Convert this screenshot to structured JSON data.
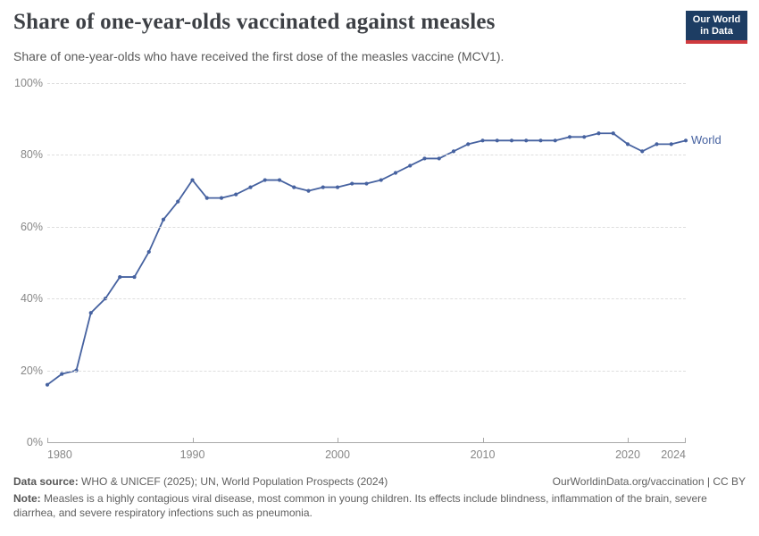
{
  "header": {
    "title": "Share of one-year-olds vaccinated against measles",
    "subtitle": "Share of one-year-olds who have received the first dose of the measles vaccine (MCV1).",
    "logo_line1": "Our World",
    "logo_line2": "in Data"
  },
  "chart_data": {
    "type": "line",
    "title": "Share of one-year-olds vaccinated against measles",
    "xlabel": "",
    "ylabel": "",
    "xlim": [
      1980,
      2024
    ],
    "ylim": [
      0,
      100
    ],
    "x_ticks": [
      1980,
      1990,
      2000,
      2010,
      2020,
      2024
    ],
    "y_ticks": [
      0,
      20,
      40,
      60,
      80,
      100
    ],
    "y_tick_suffix": "%",
    "grid": "horizontal-dashed",
    "legend_position": "end-of-line",
    "series": [
      {
        "name": "World",
        "color": "#4662a0",
        "x": [
          1980,
          1981,
          1982,
          1983,
          1984,
          1985,
          1986,
          1987,
          1988,
          1989,
          1990,
          1991,
          1992,
          1993,
          1994,
          1995,
          1996,
          1997,
          1998,
          1999,
          2000,
          2001,
          2002,
          2003,
          2004,
          2005,
          2006,
          2007,
          2008,
          2009,
          2010,
          2011,
          2012,
          2013,
          2014,
          2015,
          2016,
          2017,
          2018,
          2019,
          2020,
          2021,
          2022,
          2023,
          2024
        ],
        "values": [
          16,
          19,
          20,
          36,
          40,
          46,
          46,
          53,
          62,
          67,
          73,
          68,
          68,
          69,
          71,
          73,
          73,
          71,
          70,
          71,
          71,
          72,
          72,
          73,
          75,
          77,
          79,
          79,
          81,
          83,
          84,
          84,
          84,
          84,
          84,
          84,
          85,
          85,
          86,
          86,
          83,
          81,
          83,
          83,
          84
        ]
      }
    ]
  },
  "footer": {
    "datasource_label": "Data source:",
    "datasource_text": " WHO & UNICEF (2025); UN, World Population Prospects (2024)",
    "attribution": "OurWorldinData.org/vaccination | CC BY",
    "note_label": "Note:",
    "note_text": " Measles is a highly contagious viral disease, most common in young children. Its effects include blindness, inflammation of the brain, severe diarrhea, and severe respiratory infections such as pneumonia."
  }
}
